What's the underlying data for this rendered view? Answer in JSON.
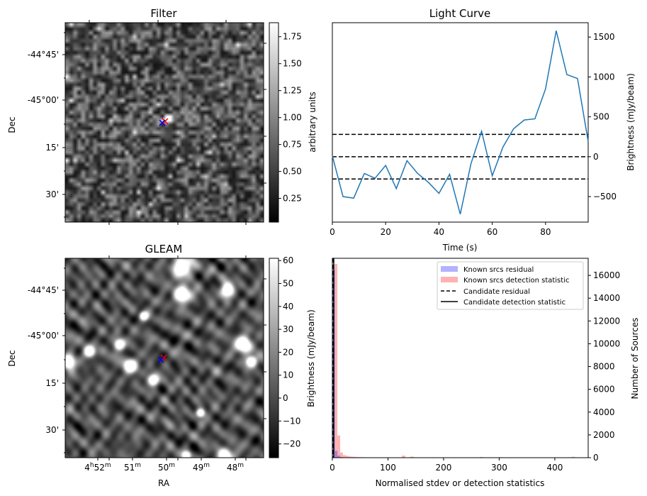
{
  "chart_data": [
    {
      "type": "heatmap",
      "title": "Filter",
      "ylabel": "Dec",
      "yticklabels": [
        "-44°45'",
        "-45°00'",
        "15'",
        "30'"
      ],
      "colorbar": {
        "label": "arbitrary units",
        "range": [
          0.03,
          1.88
        ],
        "ticks": [
          0.25,
          0.5,
          0.75,
          1.0,
          1.25,
          1.5,
          1.75
        ],
        "ticklabels": [
          "0.25",
          "0.50",
          "0.75",
          "1.00",
          "1.25",
          "1.50",
          "1.75"
        ],
        "cmap": "gray"
      },
      "markers": [
        {
          "symbol": "x",
          "color": "#0000ff"
        },
        {
          "symbol": "x",
          "color": "#ff0000"
        }
      ]
    },
    {
      "type": "line",
      "title": "Light Curve",
      "xlabel": "Time (s)",
      "ylabel": "Brightness (mJy/beam)",
      "xlim": [
        0,
        96
      ],
      "ylim": [
        -820,
        1680
      ],
      "xticks": [
        0,
        20,
        40,
        60,
        80
      ],
      "yticks": [
        -500,
        0,
        500,
        1000,
        1500
      ],
      "yaxis_side": "right",
      "series": [
        {
          "color": "#1f77b4",
          "x": [
            0,
            4,
            8,
            12,
            16,
            20,
            24,
            28,
            32,
            36,
            40,
            44,
            48,
            52,
            56,
            60,
            64,
            68,
            72,
            76,
            80,
            84,
            88,
            92,
            96
          ],
          "y": [
            10,
            -500,
            -520,
            -210,
            -270,
            -110,
            -400,
            -50,
            -210,
            -320,
            -460,
            -220,
            -720,
            -90,
            320,
            -240,
            120,
            350,
            460,
            475,
            850,
            1580,
            1030,
            980,
            190
          ]
        }
      ],
      "hlines": [
        {
          "y": 280,
          "style": "dashed",
          "color": "#000000"
        },
        {
          "y": 0,
          "style": "dashed",
          "color": "#000000"
        },
        {
          "y": -280,
          "style": "dashed",
          "color": "#000000"
        }
      ]
    },
    {
      "type": "heatmap",
      "title": "GLEAM",
      "xlabel": "RA",
      "ylabel": "Dec",
      "xticklabels": [
        "4h52m",
        "51m",
        "50m",
        "49m",
        "48m"
      ],
      "yticklabels": [
        "-44°45'",
        "-45°00'",
        "15'",
        "30'"
      ],
      "colorbar": {
        "label": "Brightness (mJy/beam)",
        "range": [
          -26,
          61
        ],
        "ticks": [
          -20,
          -10,
          0,
          10,
          20,
          30,
          40,
          50,
          60
        ],
        "ticklabels": [
          "−20",
          "−10",
          "0",
          "10",
          "20",
          "30",
          "40",
          "50",
          "60"
        ],
        "cmap": "gray"
      },
      "markers": [
        {
          "symbol": "x",
          "color": "#0000ff"
        },
        {
          "symbol": "x",
          "color": "#ff0000"
        }
      ]
    },
    {
      "type": "bar",
      "title": "",
      "xlabel": "Normalised stdev or detection statistics",
      "ylabel": "Number of Sources",
      "xlim": [
        0,
        460
      ],
      "ylim": [
        0,
        17500
      ],
      "xticks": [
        0,
        100,
        200,
        300,
        400
      ],
      "yticks": [
        0,
        2000,
        4000,
        6000,
        8000,
        10000,
        12000,
        14000,
        16000
      ],
      "yaxis_side": "right",
      "legend_position": "top-right",
      "legend": [
        "Known srcs residual",
        "Known srcs detection statistic",
        "Candidate residual",
        "Candidate detection statistic"
      ],
      "series": [
        {
          "name": "Known srcs residual",
          "color": "#0000ff",
          "bin_width": 4.6,
          "bin_start": 0,
          "values": [
            16500,
            600,
            180,
            60,
            20
          ]
        },
        {
          "name": "Known srcs detection statistic",
          "color": "#ff0000",
          "bin_edges": [
            4,
            9,
            14,
            19,
            24,
            29,
            34,
            39,
            44,
            49,
            54,
            59,
            64,
            69,
            79,
            89,
            99,
            109,
            119,
            129
          ],
          "values": [
            17000,
            1950,
            450,
            220,
            160,
            110,
            90,
            70,
            55,
            45,
            38,
            30,
            25,
            20,
            15,
            12,
            10,
            8,
            6
          ]
        }
      ],
      "vlines": [
        {
          "name": "Candidate residual",
          "x": 1.5,
          "style": "dashed",
          "color": "#000000"
        },
        {
          "name": "Candidate detection statistic",
          "x": 2.5,
          "style": "solid",
          "color": "#000000"
        }
      ]
    }
  ]
}
